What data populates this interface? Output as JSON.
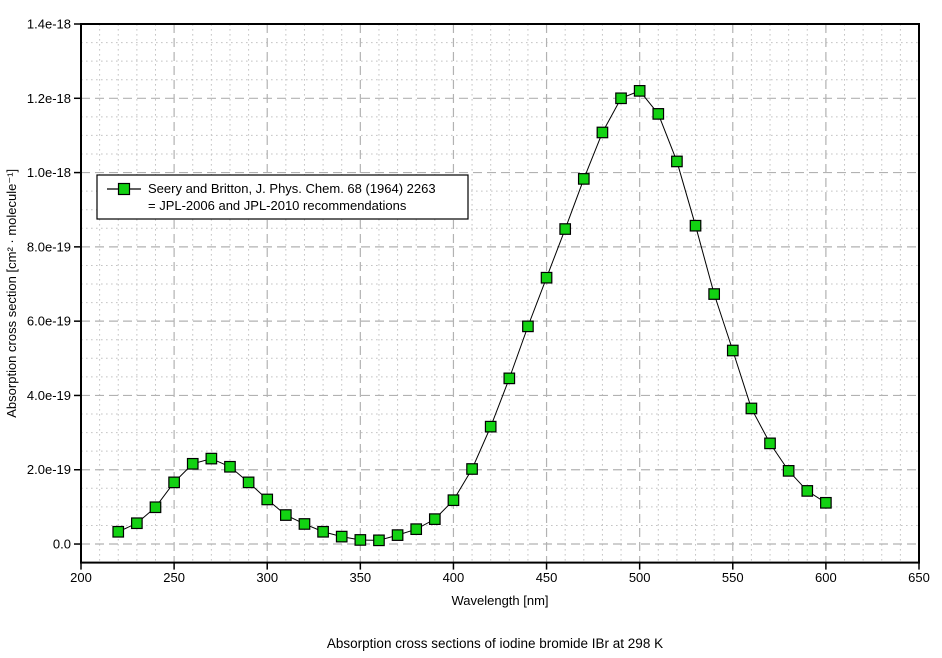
{
  "page": {
    "background": "#ffffff",
    "caption": "Absorption cross sections of iodine bromide IBr at 298 K"
  },
  "chart_data": {
    "type": "line",
    "title": "",
    "xlabel": "Wavelength [nm]",
    "ylabel": "Absorption cross section [cm² · molecule⁻¹]",
    "xlim": [
      200,
      650
    ],
    "ylim_1e19": [
      -0.5,
      14
    ],
    "x_major_ticks": [
      200,
      250,
      300,
      350,
      400,
      450,
      500,
      550,
      600,
      650
    ],
    "x_minor_step_nm": 10,
    "y_major_ticks_1e19": [
      0,
      2,
      4,
      6,
      8,
      10,
      12,
      14
    ],
    "y_tick_labels": [
      "0.0",
      "2.0e-19",
      "4.0e-19",
      "6.0e-19",
      "8.0e-19",
      "1.0e-18",
      "1.2e-18",
      "1.4e-18"
    ],
    "y_minor_step_1e19": 0.5,
    "grid": {
      "major": "dashed",
      "minor": "dotted",
      "major_color": "#b2b2b2",
      "minor_color": "#c4c4c4"
    },
    "frame_color": "#000000",
    "legend": {
      "position": "upper-left-inside",
      "line1": "Seery and Britton, J. Phys. Chem.  68 (1964) 2263",
      "line2": "= JPL-2006 and JPL-2010 recommendations"
    },
    "series": [
      {
        "name": "Seery and Britton, J. Phys. Chem. 68 (1964) 2263 = JPL-2006 and JPL-2010 recommendations",
        "marker": "square",
        "marker_color": "#12d212",
        "marker_edge_color": "#000000",
        "line_color": "#000000",
        "y_values_scale": "1e-19 cm² molecule⁻¹",
        "x": [
          220,
          230,
          240,
          250,
          260,
          270,
          280,
          290,
          300,
          310,
          320,
          330,
          340,
          350,
          360,
          370,
          380,
          390,
          400,
          410,
          420,
          430,
          440,
          450,
          460,
          470,
          480,
          490,
          500,
          510,
          520,
          530,
          540,
          550,
          560,
          570,
          580,
          590,
          600
        ],
        "y_1e19": [
          0.33,
          0.56,
          0.99,
          1.66,
          2.16,
          2.3,
          2.08,
          1.66,
          1.2,
          0.78,
          0.54,
          0.33,
          0.2,
          0.11,
          0.1,
          0.24,
          0.4,
          0.67,
          1.18,
          2.02,
          3.16,
          4.46,
          5.86,
          7.17,
          8.48,
          9.83,
          11.08,
          12.0,
          12.2,
          11.58,
          10.3,
          8.57,
          6.73,
          5.21,
          3.65,
          2.71,
          1.97,
          1.43,
          1.11
        ]
      }
    ]
  }
}
